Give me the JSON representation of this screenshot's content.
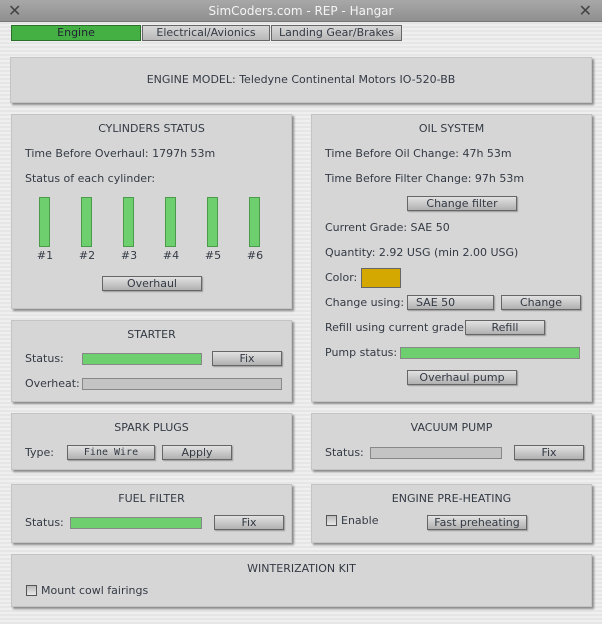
{
  "window": {
    "title": "SimCoders.com - REP - Hangar",
    "close_icon": "x-icon"
  },
  "tabs": [
    {
      "label": "Engine",
      "active": true
    },
    {
      "label": "Electrical/Avionics",
      "active": false
    },
    {
      "label": "Landing Gear/Brakes",
      "active": false
    }
  ],
  "engine_model": "ENGINE MODEL: Teledyne Continental Motors IO-520-BB",
  "cylinders": {
    "title": "CYLINDERS STATUS",
    "time_before_overhaul": "Time Before Overhaul: 1797h 53m",
    "status_label": "Status of each cylinder:",
    "items": [
      {
        "label": "#1",
        "level": 1.0
      },
      {
        "label": "#2",
        "level": 1.0
      },
      {
        "label": "#3",
        "level": 1.0
      },
      {
        "label": "#4",
        "level": 1.0
      },
      {
        "label": "#5",
        "level": 1.0
      },
      {
        "label": "#6",
        "level": 1.0
      }
    ],
    "overhaul_button": "Overhaul"
  },
  "starter": {
    "title": "STARTER",
    "status_label": "Status:",
    "status_level": 1.0,
    "fix_button": "Fix",
    "overheat_label": "Overheat:",
    "overheat_level": 0.0
  },
  "spark_plugs": {
    "title": "SPARK PLUGS",
    "type_label": "Type:",
    "type_value": "Fine Wire",
    "apply_button": "Apply"
  },
  "fuel_filter": {
    "title": "FUEL FILTER",
    "status_label": "Status:",
    "status_level": 1.0,
    "fix_button": "Fix"
  },
  "oil": {
    "title": "OIL SYSTEM",
    "time_oil": "Time Before Oil Change: 47h 53m",
    "time_filter": "Time Before Filter Change: 97h 53m",
    "change_filter_button": "Change filter",
    "grade": "Current Grade: SAE 50",
    "quantity": "Quantity: 2.92 USG (min 2.00 USG)",
    "color_label": "Color:",
    "color": "#d4a800",
    "change_using_label": "Change using:",
    "change_using_value": "SAE  50",
    "change_button": "Change",
    "refill_label": "Refill using current grade:",
    "refill_button": "Refill",
    "pump_label": "Pump status:",
    "pump_level": 1.0,
    "overhaul_pump_button": "Overhaul pump"
  },
  "vacuum": {
    "title": "VACUUM PUMP",
    "status_label": "Status:",
    "status_level": 0.0,
    "fix_button": "Fix"
  },
  "preheat": {
    "title": "ENGINE PRE-HEATING",
    "enable_label": "Enable",
    "enabled": false,
    "fast_button": "Fast preheating"
  },
  "winter": {
    "title": "WINTERIZATION KIT",
    "mount_label": "Mount cowl fairings",
    "checked": false
  },
  "colors": {
    "accent_green": "#6ecf6e",
    "active_tab": "#44b044"
  }
}
